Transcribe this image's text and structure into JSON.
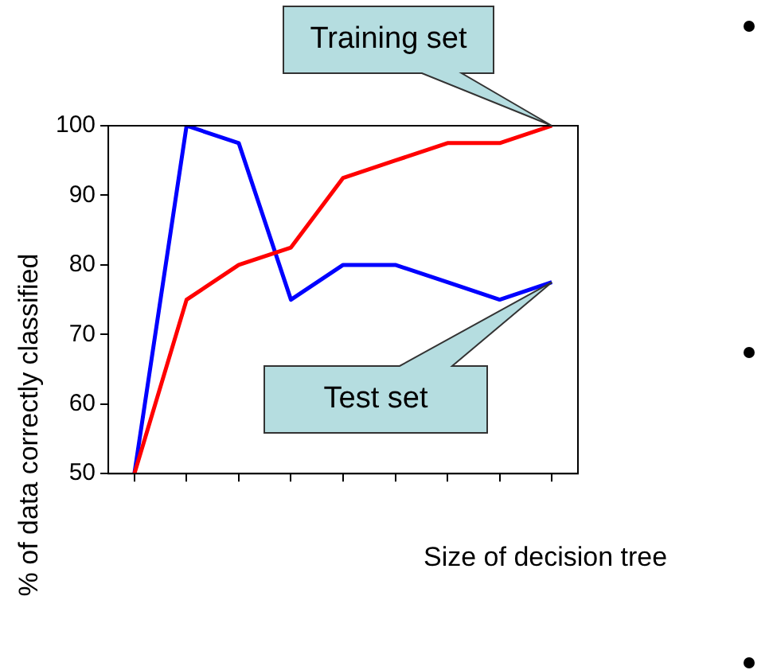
{
  "chart_data": {
    "type": "line",
    "xlabel": "Size of decision tree",
    "ylabel": "% of data correctly classified",
    "categories": [
      null,
      null,
      null,
      null,
      null,
      null,
      null,
      null,
      null
    ],
    "series": [
      {
        "name": "Training set",
        "color": "#ff0000",
        "values": [
          50,
          75,
          80,
          82.5,
          92.5,
          95,
          97.5,
          97.5,
          100
        ]
      },
      {
        "name": "Test set",
        "color": "#0000ff",
        "values": [
          50,
          100,
          97.5,
          75,
          80,
          80,
          77.5,
          75,
          77.5
        ]
      }
    ],
    "ylim": [
      50,
      100
    ],
    "yticks": [
      50,
      60,
      70,
      80,
      90,
      100
    ],
    "grid": false,
    "legend": false,
    "marker": "none",
    "line_style": "solid"
  }
}
